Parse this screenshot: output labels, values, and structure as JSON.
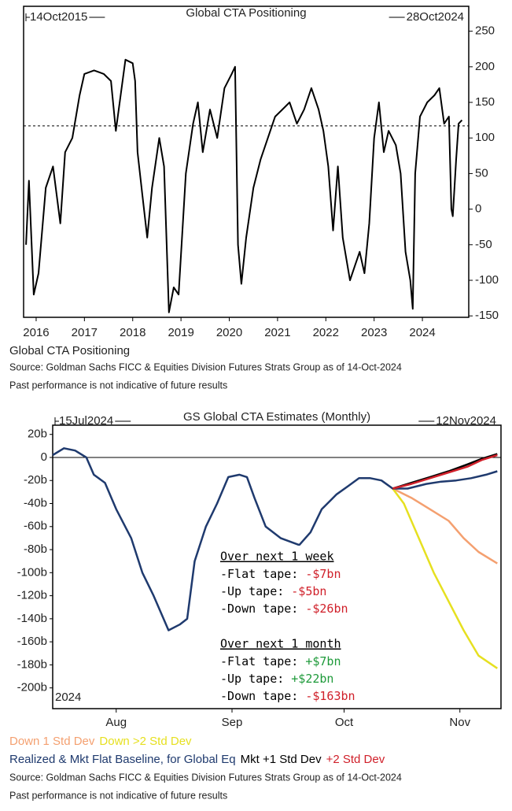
{
  "chart_data": [
    {
      "type": "line",
      "title": "Global CTA Positioning",
      "start_label": "14Oct2015",
      "end_label": "28Oct2024",
      "caption": "Global CTA Positioning",
      "source": "Source: Goldman Sachs FICC & Equities Division Futures Strats Group as of 14-Oct-2024",
      "note": "Past performance is not indicative of future results",
      "xlim": [
        2015.74,
        2024.96
      ],
      "xticks": [
        2016,
        2017,
        2018,
        2019,
        2020,
        2021,
        2022,
        2023,
        2024
      ],
      "ylim": [
        -152,
        285
      ],
      "yticks": [
        -150,
        -100,
        -50,
        0,
        50,
        100,
        150,
        200,
        250
      ],
      "reference_line": 117,
      "series": [
        {
          "name": "Global CTA Positioning",
          "color": "#000000",
          "x": [
            2015.79,
            2015.85,
            2015.95,
            2016.05,
            2016.2,
            2016.35,
            2016.5,
            2016.6,
            2016.75,
            2016.9,
            2017.0,
            2017.2,
            2017.4,
            2017.55,
            2017.65,
            2017.75,
            2017.85,
            2018.0,
            2018.05,
            2018.1,
            2018.2,
            2018.3,
            2018.4,
            2018.55,
            2018.65,
            2018.75,
            2018.85,
            2018.95,
            2019.1,
            2019.25,
            2019.35,
            2019.45,
            2019.6,
            2019.75,
            2019.9,
            2020.05,
            2020.12,
            2020.18,
            2020.25,
            2020.35,
            2020.5,
            2020.65,
            2020.8,
            2020.95,
            2021.1,
            2021.25,
            2021.4,
            2021.55,
            2021.7,
            2021.85,
            2021.95,
            2022.05,
            2022.15,
            2022.25,
            2022.35,
            2022.5,
            2022.6,
            2022.7,
            2022.8,
            2022.9,
            2023.0,
            2023.1,
            2023.2,
            2023.3,
            2023.45,
            2023.55,
            2023.65,
            2023.75,
            2023.8,
            2023.85,
            2023.95,
            2024.1,
            2024.25,
            2024.35,
            2024.45,
            2024.55,
            2024.6,
            2024.63,
            2024.7,
            2024.75,
            2024.82
          ],
          "values": [
            -50,
            40,
            -120,
            -90,
            30,
            60,
            -20,
            80,
            100,
            160,
            190,
            195,
            190,
            180,
            110,
            160,
            210,
            205,
            180,
            80,
            20,
            -40,
            30,
            100,
            60,
            -145,
            -110,
            -120,
            50,
            120,
            150,
            80,
            140,
            100,
            170,
            190,
            200,
            -50,
            -105,
            -40,
            30,
            70,
            100,
            130,
            140,
            150,
            120,
            140,
            170,
            140,
            110,
            60,
            -30,
            60,
            -40,
            -100,
            -80,
            -60,
            -90,
            -20,
            100,
            150,
            80,
            110,
            90,
            50,
            -60,
            -100,
            -140,
            50,
            130,
            150,
            160,
            170,
            120,
            130,
            0,
            -10,
            70,
            120,
            125
          ]
        }
      ]
    },
    {
      "type": "line",
      "title": "GS Global CTA Estimates (Monthly)",
      "start_label": "15Jul2024",
      "end_label": "12Nov2024",
      "year_label": "2024",
      "source": "Source: Goldman Sachs FICC & Equities Division Futures Strats Group as of 14-Oct-2024",
      "note": "Past performance is not indicative of future results",
      "xlim": [
        196,
        316
      ],
      "xticks": [
        {
          "value": 213,
          "label": "Aug"
        },
        {
          "value": 244,
          "label": "Sep"
        },
        {
          "value": 274,
          "label": "Oct"
        },
        {
          "value": 305,
          "label": "Nov"
        }
      ],
      "ylim": [
        -218,
        28
      ],
      "yticks": [
        {
          "value": 20,
          "label": "20b"
        },
        0,
        {
          "value": -20,
          "label": "-20b"
        },
        {
          "value": -40,
          "label": "-40b"
        },
        {
          "value": -60,
          "label": "-60b"
        },
        {
          "value": -80,
          "label": "-80b"
        },
        {
          "value": -100,
          "label": "-100b"
        },
        {
          "value": -120,
          "label": "-120b"
        },
        {
          "value": -140,
          "label": "-140b"
        },
        {
          "value": -160,
          "label": "-160b"
        },
        {
          "value": -180,
          "label": "-180b"
        },
        {
          "value": -200,
          "label": "-200b"
        }
      ],
      "series": [
        {
          "name": "Down 1 Std Dev",
          "color": "#f4a070",
          "x": [
            287,
            292,
            297,
            302,
            306,
            310,
            315
          ],
          "values": [
            -27,
            -35,
            -45,
            -55,
            -70,
            -82,
            -92
          ]
        },
        {
          "name": "Down >2 Std Dev",
          "color": "#e6e020",
          "x": [
            287,
            290,
            294,
            298,
            302,
            306,
            310,
            315
          ],
          "values": [
            -27,
            -40,
            -70,
            -100,
            -125,
            -150,
            -172,
            -183
          ]
        },
        {
          "name": "Realized & Mkt Flat Baseline, for Global Eq",
          "color": "#1f3a6e",
          "x": [
            196,
            199,
            202,
            205,
            207,
            210,
            213,
            217,
            220,
            223,
            227,
            230,
            232,
            234,
            237,
            240,
            243,
            246,
            248,
            250,
            253,
            257,
            262,
            265,
            268,
            272,
            275,
            278,
            281,
            284,
            287,
            291,
            296,
            300,
            304,
            308,
            312,
            315
          ],
          "values": [
            2,
            8,
            6,
            0,
            -15,
            -22,
            -45,
            -70,
            -100,
            -120,
            -150,
            -145,
            -140,
            -90,
            -60,
            -40,
            -17,
            -15,
            -17,
            -35,
            -60,
            -70,
            -76,
            -65,
            -45,
            -32,
            -25,
            -18,
            -18,
            -20,
            -27,
            -27,
            -23,
            -21,
            -20,
            -18,
            -15,
            -12
          ]
        },
        {
          "name": "Mkt +1 Std Dev",
          "color": "#000000",
          "x": [
            287,
            292,
            297,
            302,
            307,
            311,
            315
          ],
          "values": [
            -27,
            -22,
            -17,
            -12,
            -6,
            -1,
            3
          ]
        },
        {
          "name": "+2 Std Dev",
          "color": "#d0202a",
          "x": [
            287,
            292,
            297,
            302,
            307,
            311,
            315
          ],
          "values": [
            -27,
            -23,
            -18,
            -13,
            -8,
            -2,
            2
          ]
        }
      ],
      "annotations": [
        {
          "heading": "Over next 1 week",
          "items": [
            {
              "label": "-Flat tape:",
              "value": "-$7bn",
              "color": "#d0202a"
            },
            {
              "label": "-Up tape:",
              "value": "-$5bn",
              "color": "#d0202a"
            },
            {
              "label": "-Down tape:",
              "value": "-$26bn",
              "color": "#d0202a"
            }
          ]
        },
        {
          "heading": "Over next 1 month",
          "items": [
            {
              "label": "-Flat tape:",
              "value": "+$7bn",
              "color": "#1e9a3a"
            },
            {
              "label": "-Up tape:",
              "value": "+$22bn",
              "color": "#1e9a3a"
            },
            {
              "label": "-Down tape:",
              "value": "-$163bn",
              "color": "#d0202a"
            }
          ]
        }
      ]
    }
  ]
}
